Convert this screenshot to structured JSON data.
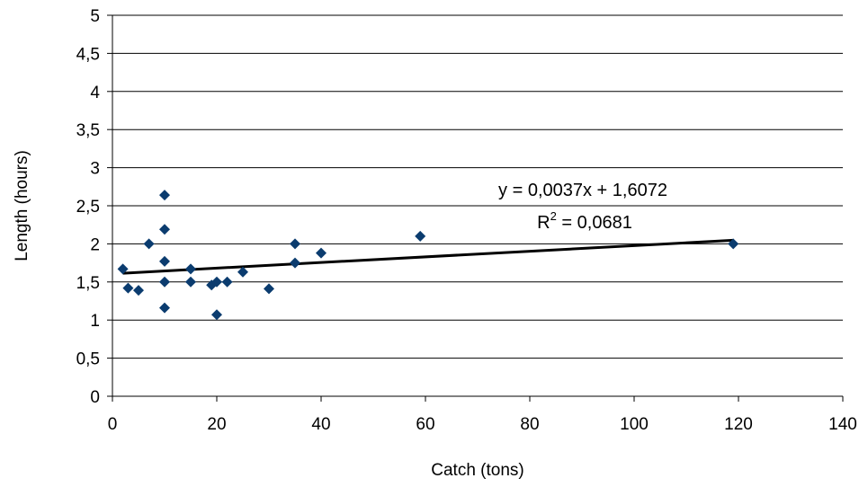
{
  "chart_data": {
    "type": "scatter",
    "xlabel": "Catch (tons)",
    "ylabel": "Length (hours)",
    "xlim": [
      0,
      140
    ],
    "ylim": [
      0,
      5
    ],
    "xticks": [
      "0",
      "20",
      "40",
      "60",
      "80",
      "100",
      "120",
      "140"
    ],
    "yticks": [
      "0",
      "0,5",
      "1",
      "1,5",
      "2",
      "2,5",
      "3",
      "3,5",
      "4",
      "4,5",
      "5"
    ],
    "grid": "horizontal",
    "marker_color": "#0B3C6F",
    "points": [
      {
        "x": 2,
        "y": 1.67
      },
      {
        "x": 3,
        "y": 1.42
      },
      {
        "x": 5,
        "y": 1.39
      },
      {
        "x": 7,
        "y": 2.0
      },
      {
        "x": 10,
        "y": 2.64
      },
      {
        "x": 10,
        "y": 2.19
      },
      {
        "x": 10,
        "y": 1.77
      },
      {
        "x": 10,
        "y": 1.5
      },
      {
        "x": 10,
        "y": 1.16
      },
      {
        "x": 15,
        "y": 1.67
      },
      {
        "x": 15,
        "y": 1.5
      },
      {
        "x": 19,
        "y": 1.46
      },
      {
        "x": 20,
        "y": 1.5
      },
      {
        "x": 20,
        "y": 1.07
      },
      {
        "x": 22,
        "y": 1.5
      },
      {
        "x": 25,
        "y": 1.63
      },
      {
        "x": 30,
        "y": 1.41
      },
      {
        "x": 35,
        "y": 2.0
      },
      {
        "x": 35,
        "y": 1.75
      },
      {
        "x": 40,
        "y": 1.88
      },
      {
        "x": 59,
        "y": 2.1
      },
      {
        "x": 119,
        "y": 2.0
      }
    ],
    "trendline": {
      "slope": 0.0037,
      "intercept": 1.6072,
      "x_range": [
        2,
        119
      ],
      "equation_label": "y = 0,0037x + 1,6072",
      "r2_prefix": "R",
      "r2_sup": "2",
      "r2_value": " = 0,0681"
    }
  }
}
